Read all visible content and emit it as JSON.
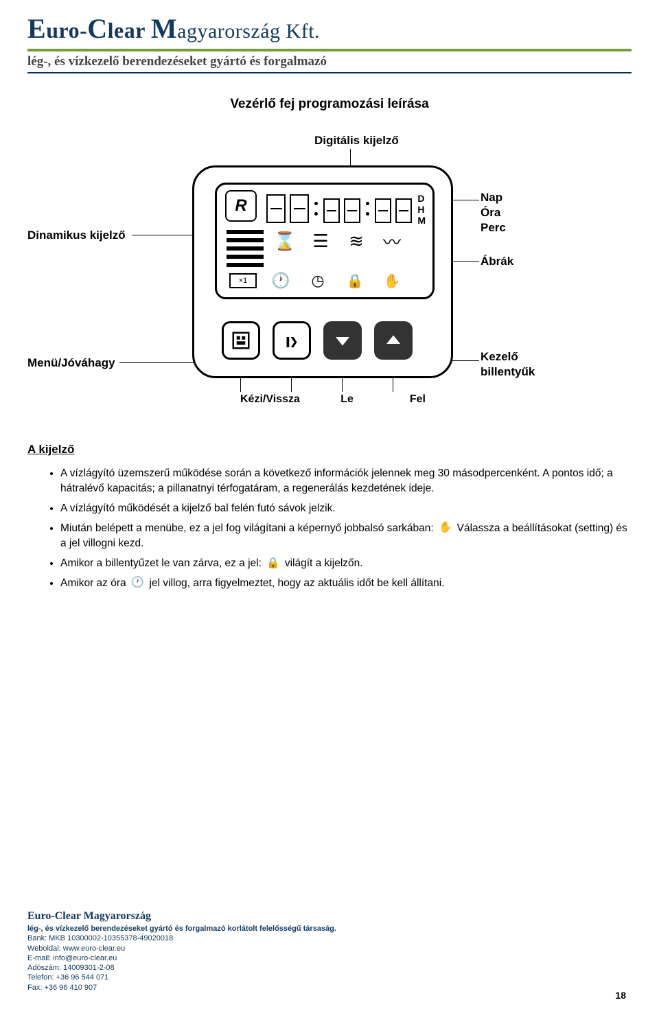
{
  "header": {
    "company_html_parts": [
      "E",
      "uro-",
      "C",
      "lear ",
      "M",
      "agyarország Kft."
    ],
    "subtitle": "lég-, és vízkezelő berendezéseket gyártó és forgalmazó",
    "green_rule_color": "#789b3f",
    "dark_rule_color": "#0b2c4b",
    "logo_color": "#133a5e"
  },
  "title": "Vezérlő fej programozási leírása",
  "diagram": {
    "labels": {
      "digital_display": "Digitális kijelző",
      "dynamic_display": "Dinamikus kijelző",
      "day": "Nap",
      "hour": "Óra",
      "minute": "Perc",
      "icons": "Ábrák",
      "menu_approve": "Menü/Jóváhagy",
      "control_keys": "Kezelő\nbillentyűk",
      "manual_back": "Kézi/Vissza",
      "down": "Le",
      "up": "Fel"
    },
    "dhm": "D\nH\nM"
  },
  "section_heading": "A kijelző",
  "bullets": [
    "A vízlágyító üzemszerű működése során a következő információk jelennek meg 30 másodpercenként. A pontos idő; a hátralévő kapacitás; a pillanatnyi térfogatáram, a regenerálás kezdetének ideje.",
    "A vízlágyító működését a kijelző bal felén futó sávok jelzik.",
    "Miután belépett a menübe, ez a jel fog világítani a képernyő jobbalsó sarkában: [hand]   Válassza a beállításokat (setting) és a jel villogni kezd.",
    "Amikor a billentyűzet le van zárva, ez a jel: [lock] világít a kijelzőn.",
    "Amikor az óra [clock] jel villog, arra figyelmeztet, hogy az aktuális időt be kell állítani."
  ],
  "inline_icons": {
    "hand": "✋",
    "lock": "🔒",
    "clock": "🕐"
  },
  "footer": {
    "name": "Euro-Clear Magyarország",
    "desc": "lég-, és vízkezelő berendezéseket gyártó és forgalmazó korlátolt felelősségű társaság.",
    "lines": [
      "Bank: MKB 10300002-10355378-49020018",
      "Weboldal: www.euro-clear.eu",
      "E-mail: info@euro-clear.eu",
      "Adószám: 14009301-2-08",
      "Telefon: +36 96 544 071",
      "Fax: +36 96 410 907"
    ]
  },
  "page_number": "18"
}
